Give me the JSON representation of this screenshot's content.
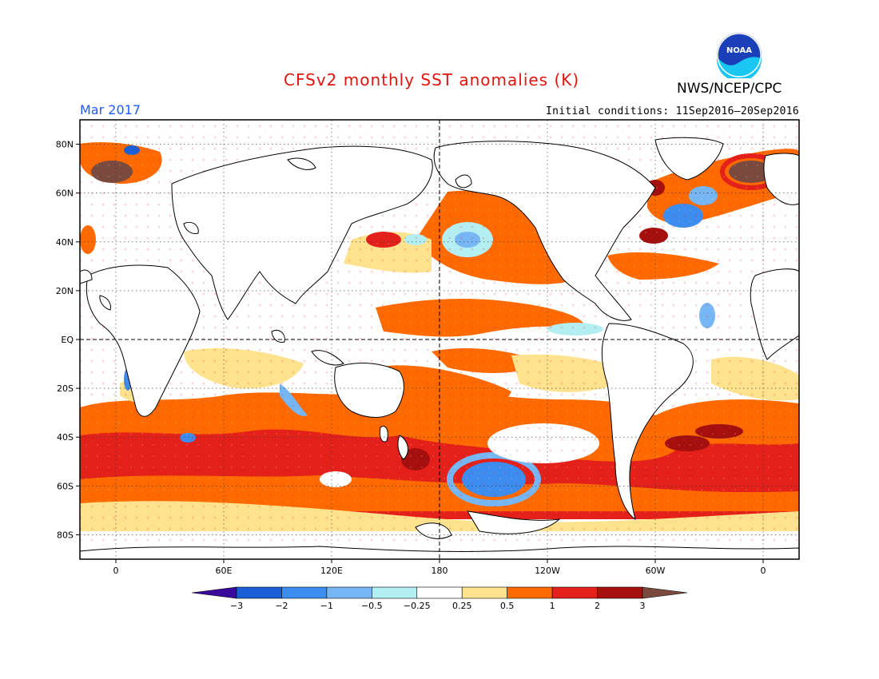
{
  "header": {
    "title": "CFSv2 monthly SST anomalies (K)",
    "month": "Mar 2017",
    "org": "NWS/NCEP/CPC",
    "initial_conditions": "Initial conditions: 11Sep2016–20Sep2016",
    "logo_text": "NOAA"
  },
  "map": {
    "projection": "cylindrical equidistant",
    "lon_range": [
      -20,
      380
    ],
    "lat_range": [
      -90,
      90
    ],
    "lat_labels": [
      {
        "lat": 80,
        "label": "80N"
      },
      {
        "lat": 60,
        "label": "60N"
      },
      {
        "lat": 40,
        "label": "40N"
      },
      {
        "lat": 20,
        "label": "20N"
      },
      {
        "lat": 0,
        "label": "EQ"
      },
      {
        "lat": -20,
        "label": "20S"
      },
      {
        "lat": -40,
        "label": "40S"
      },
      {
        "lat": -60,
        "label": "60S"
      },
      {
        "lat": -80,
        "label": "80S"
      }
    ],
    "lon_labels": [
      {
        "lon": 0,
        "label": "0"
      },
      {
        "lon": 60,
        "label": "60E"
      },
      {
        "lon": 120,
        "label": "120E"
      },
      {
        "lon": 180,
        "label": "180"
      },
      {
        "lon": 240,
        "label": "120W"
      },
      {
        "lon": 300,
        "label": "60W"
      },
      {
        "lon": 360,
        "label": "0"
      }
    ],
    "reference_lines": [
      "equator dashed",
      "dateline dashed"
    ],
    "grid": "dotted every 20 degrees",
    "land_color": "#ffffff"
  },
  "colorbar": {
    "labels": [
      "−3",
      "−2",
      "−1",
      "−0.5",
      "−0.25",
      "0.25",
      "0.5",
      "1",
      "2",
      "3"
    ],
    "colors": [
      "#3a0a9c",
      "#1b5fd6",
      "#3d8cf0",
      "#76b6f5",
      "#b3eef2",
      "#ffffff",
      "#fee28d",
      "#ff6a00",
      "#e3201a",
      "#a5100f",
      "#7a4a3e"
    ]
  }
}
